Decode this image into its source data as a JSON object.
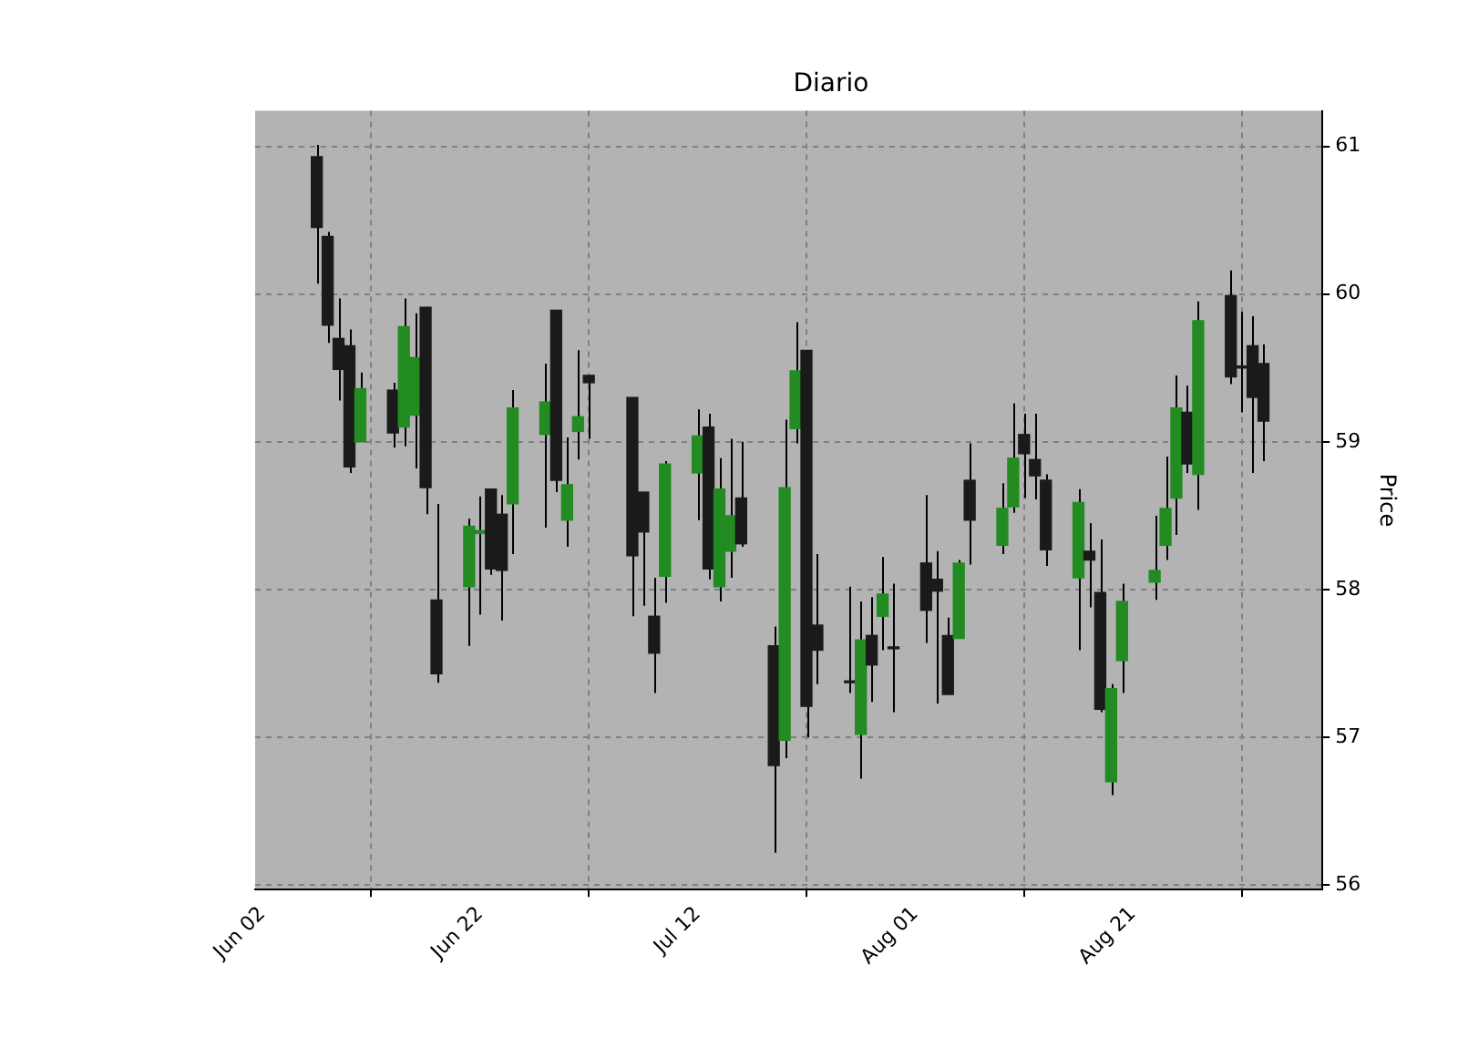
{
  "chart_data": {
    "type": "candlestick",
    "title": "Diario",
    "ylabel": "Price",
    "x": [
      "--06-07",
      "--06-08",
      "--06-09",
      "--06-10",
      "--06-11",
      "--06-14",
      "--06-15",
      "--06-16",
      "--06-17",
      "--06-18",
      "--06-21",
      "--06-22",
      "--06-23",
      "--06-24",
      "--06-25",
      "--06-28",
      "--06-29",
      "--06-30",
      "--07-01",
      "--07-02",
      "--07-06",
      "--07-07",
      "--07-08",
      "--07-09",
      "--07-12",
      "--07-13",
      "--07-14",
      "--07-15",
      "--07-16",
      "--07-19",
      "--07-20",
      "--07-21",
      "--07-22",
      "--07-23",
      "--07-26",
      "--07-27",
      "--07-28",
      "--07-29",
      "--07-30",
      "--08-02",
      "--08-03",
      "--08-04",
      "--08-05",
      "--08-06",
      "--08-09",
      "--08-10",
      "--08-11",
      "--08-12",
      "--08-13",
      "--08-16",
      "--08-17",
      "--08-18",
      "--08-19",
      "--08-20",
      "--08-23",
      "--08-24",
      "--08-25",
      "--08-26",
      "--08-27",
      "--08-30",
      "--08-31",
      "--09-01",
      "--09-02"
    ],
    "ohlc": [
      [
        60.93,
        61.01,
        60.07,
        60.45
      ],
      [
        60.39,
        60.42,
        59.67,
        59.79
      ],
      [
        59.7,
        59.97,
        59.28,
        59.49
      ],
      [
        59.65,
        59.76,
        58.79,
        58.83
      ],
      [
        59.0,
        59.47,
        59.0,
        59.36
      ],
      [
        59.35,
        59.4,
        58.96,
        59.06
      ],
      [
        59.1,
        59.97,
        58.97,
        59.78
      ],
      [
        59.18,
        59.87,
        58.82,
        59.57
      ],
      [
        59.91,
        59.91,
        58.51,
        58.69
      ],
      [
        57.93,
        58.58,
        57.37,
        57.43
      ],
      [
        58.02,
        58.48,
        57.62,
        58.43
      ],
      [
        58.38,
        58.63,
        57.83,
        58.4
      ],
      [
        58.68,
        58.68,
        58.1,
        58.14
      ],
      [
        58.51,
        58.64,
        57.79,
        58.13
      ],
      [
        58.58,
        59.35,
        58.24,
        59.23
      ],
      [
        59.05,
        59.53,
        58.42,
        59.27
      ],
      [
        59.89,
        59.89,
        58.66,
        58.74
      ],
      [
        58.47,
        59.03,
        58.29,
        58.71
      ],
      [
        59.07,
        59.62,
        58.88,
        59.17
      ],
      [
        59.45,
        59.45,
        59.02,
        59.4
      ],
      [
        59.3,
        59.3,
        57.82,
        58.23
      ],
      [
        58.66,
        58.66,
        57.89,
        58.39
      ],
      [
        57.82,
        58.08,
        57.3,
        57.57
      ],
      [
        58.09,
        58.87,
        57.91,
        58.85
      ],
      [
        58.79,
        59.22,
        58.47,
        59.04
      ],
      [
        59.1,
        59.19,
        58.07,
        58.14
      ],
      [
        58.02,
        58.89,
        57.92,
        58.68
      ],
      [
        58.26,
        59.02,
        58.08,
        58.5
      ],
      [
        58.62,
        59.0,
        58.29,
        58.31
      ],
      [
        57.62,
        57.75,
        56.22,
        56.81
      ],
      [
        56.98,
        59.15,
        56.86,
        58.69
      ],
      [
        59.09,
        59.81,
        58.99,
        59.48
      ],
      [
        59.62,
        59.62,
        57.0,
        57.21
      ],
      [
        57.76,
        58.24,
        57.36,
        57.59
      ],
      [
        57.38,
        58.02,
        57.3,
        57.37
      ],
      [
        57.02,
        57.92,
        56.72,
        57.66
      ],
      [
        57.69,
        57.95,
        57.24,
        57.49
      ],
      [
        57.82,
        58.22,
        57.59,
        57.97
      ],
      [
        57.61,
        58.04,
        57.17,
        57.6
      ],
      [
        58.18,
        58.64,
        57.64,
        57.86
      ],
      [
        58.07,
        58.26,
        57.23,
        57.99
      ],
      [
        57.69,
        57.81,
        57.29,
        57.29
      ],
      [
        57.67,
        58.2,
        57.67,
        58.18
      ],
      [
        58.74,
        58.99,
        58.17,
        58.47
      ],
      [
        58.3,
        58.72,
        58.24,
        58.55
      ],
      [
        58.56,
        59.26,
        58.52,
        58.89
      ],
      [
        59.05,
        59.19,
        58.62,
        58.92
      ],
      [
        58.88,
        59.19,
        58.61,
        58.77
      ],
      [
        58.74,
        58.78,
        58.16,
        58.27
      ],
      [
        58.08,
        58.68,
        57.59,
        58.59
      ],
      [
        58.26,
        58.45,
        57.88,
        58.2
      ],
      [
        57.98,
        58.34,
        57.17,
        57.19
      ],
      [
        56.7,
        57.36,
        56.61,
        57.33
      ],
      [
        57.52,
        58.04,
        57.3,
        57.92
      ],
      [
        58.05,
        58.5,
        57.93,
        58.13
      ],
      [
        58.3,
        58.9,
        58.2,
        58.55
      ],
      [
        58.62,
        59.45,
        58.37,
        59.23
      ],
      [
        59.2,
        59.38,
        58.79,
        58.85
      ],
      [
        58.78,
        59.95,
        58.54,
        59.82
      ],
      [
        59.99,
        60.16,
        59.39,
        59.44
      ],
      [
        59.51,
        59.88,
        59.2,
        59.5
      ],
      [
        59.65,
        59.85,
        58.79,
        59.3
      ],
      [
        59.53,
        59.66,
        58.87,
        59.14
      ]
    ],
    "colors": [
      "#1a1a1a",
      "#1a1a1a",
      "#1a1a1a",
      "#1a1a1a",
      "#228b22",
      "#1a1a1a",
      "#228b22",
      "#228b22",
      "#1a1a1a",
      "#1a1a1a",
      "#228b22",
      "#228b22",
      "#1a1a1a",
      "#1a1a1a",
      "#228b22",
      "#228b22",
      "#1a1a1a",
      "#228b22",
      "#228b22",
      "#1a1a1a",
      "#1a1a1a",
      "#1a1a1a",
      "#1a1a1a",
      "#228b22",
      "#228b22",
      "#1a1a1a",
      "#228b22",
      "#228b22",
      "#1a1a1a",
      "#1a1a1a",
      "#228b22",
      "#228b22",
      "#1a1a1a",
      "#1a1a1a",
      "#1a1a1a",
      "#228b22",
      "#1a1a1a",
      "#228b22",
      "#1a1a1a",
      "#1a1a1a",
      "#1a1a1a",
      "#1a1a1a",
      "#228b22",
      "#1a1a1a",
      "#228b22",
      "#228b22",
      "#1a1a1a",
      "#1a1a1a",
      "#1a1a1a",
      "#228b22",
      "#1a1a1a",
      "#1a1a1a",
      "#228b22",
      "#228b22",
      "#228b22",
      "#228b22",
      "#228b22",
      "#1a1a1a",
      "#228b22",
      "#1a1a1a",
      "#1a1a1a",
      "#1a1a1a",
      "#1a1a1a"
    ],
    "xlim": [
      "--06-01T08:00",
      "--09-07T10:00"
    ],
    "xticks": [
      {
        "value": "--06-02",
        "label": "Jun 02"
      },
      {
        "value": "--06-22",
        "label": "Jun 22"
      },
      {
        "value": "--07-12",
        "label": "Jul 12"
      },
      {
        "value": "--08-01",
        "label": "Aug 01"
      },
      {
        "value": "--08-21",
        "label": "Aug 21"
      }
    ],
    "ylim": [
      55.97,
      61.24
    ],
    "yticks": [
      56,
      57,
      58,
      59,
      60,
      61
    ],
    "grid": true,
    "legend": false
  }
}
